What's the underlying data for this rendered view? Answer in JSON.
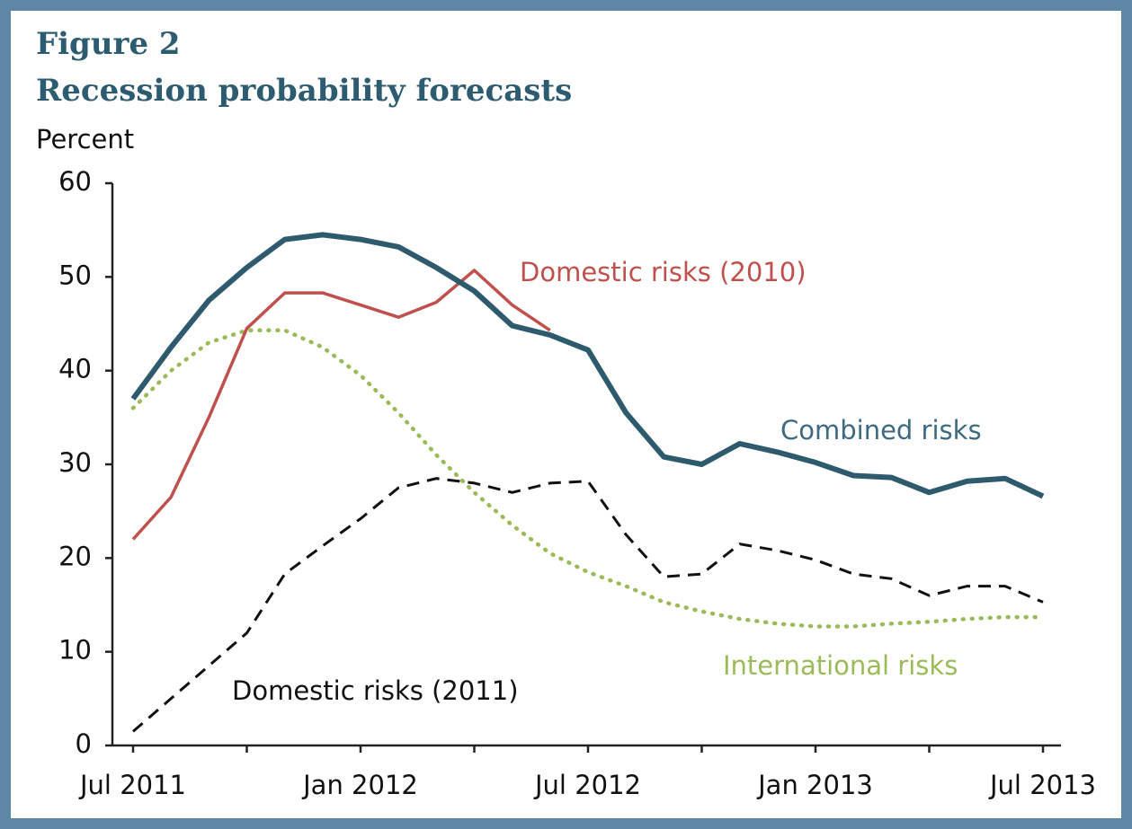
{
  "chart_data": {
    "type": "line",
    "title": "Figure 2",
    "subtitle": "Recession probability forecasts",
    "y_label": "Percent",
    "categories": [
      "Jul 2011",
      null,
      null,
      null,
      null,
      null,
      "Jan 2012",
      null,
      null,
      null,
      null,
      null,
      "Jul 2012",
      null,
      null,
      null,
      null,
      null,
      "Jan 2013",
      null,
      null,
      null,
      null,
      null,
      "Jul 2013"
    ],
    "ylim": [
      0,
      60
    ],
    "yticks": [
      0,
      10,
      20,
      30,
      40,
      50,
      60
    ],
    "series": [
      {
        "name": "Combined risks",
        "color": "#2e5a6e",
        "style": "solid",
        "values": [
          37,
          42.5,
          47.5,
          51,
          54,
          54.5,
          54,
          53.2,
          51,
          48.5,
          44.8,
          43.8,
          42.2,
          35.5,
          30.8,
          30,
          32.2,
          31.3,
          30.2,
          28.8,
          28.6,
          27,
          28.2,
          28.5,
          26.6
        ]
      },
      {
        "name": "Domestic risks (2010)",
        "color": "#c0504d",
        "style": "solid",
        "values": [
          22,
          26.5,
          35,
          44.5,
          48.3,
          48.3,
          47,
          45.7,
          47.3,
          50.7,
          47,
          44.3,
          null,
          null,
          null,
          null,
          null,
          null,
          null,
          null,
          null,
          null,
          null,
          null,
          null
        ]
      },
      {
        "name": "Domestic risks (2011)",
        "color": "#111111",
        "style": "dashed",
        "values": [
          1.5,
          5,
          8.5,
          12,
          18.3,
          21.3,
          24.2,
          27.5,
          28.5,
          28,
          27,
          28,
          28.2,
          22.5,
          18,
          18.3,
          21.5,
          20.8,
          19.8,
          18.3,
          17.8,
          16,
          17,
          17,
          15.3
        ]
      },
      {
        "name": "International risks",
        "color": "#9bbb59",
        "style": "dotted",
        "values": [
          36,
          40,
          43,
          44.3,
          44.3,
          42.5,
          39.5,
          35.5,
          31,
          27,
          23.5,
          20.5,
          18.5,
          17,
          15.3,
          14.3,
          13.5,
          13,
          12.7,
          12.7,
          13,
          13.2,
          13.5,
          13.7,
          13.7
        ]
      }
    ]
  }
}
